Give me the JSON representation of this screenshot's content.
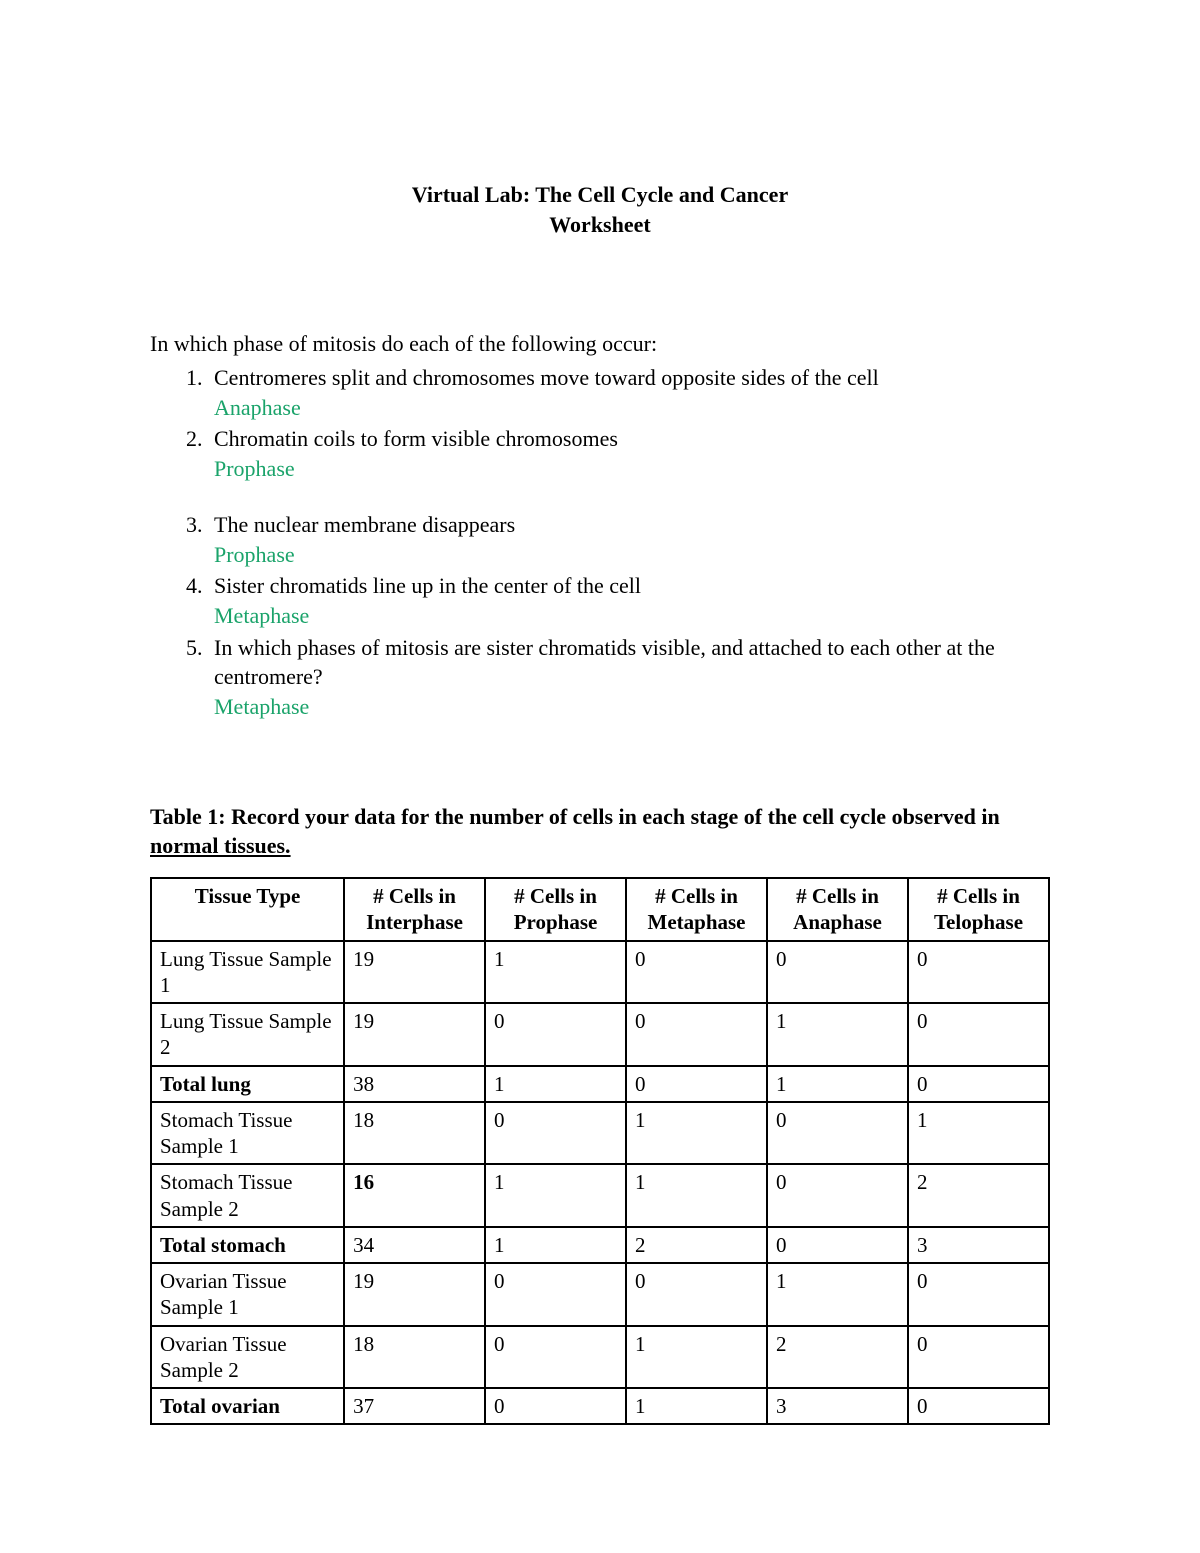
{
  "colors": {
    "text": "#000000",
    "answer": "#1aa36a",
    "background": "#ffffff",
    "table_border": "#000000"
  },
  "title": {
    "line1": "Virtual Lab:  The Cell Cycle and Cancer",
    "line2": "Worksheet"
  },
  "intro": "In which phase of mitosis do each of the following occur:",
  "questions": [
    {
      "q": "Centromeres split and chromosomes move toward opposite sides of the cell",
      "a": "Anaphase",
      "gap_after": false
    },
    {
      "q": "Chromatin coils to form visible chromosomes",
      "a": "Prophase",
      "gap_after": true
    },
    {
      "q": "The nuclear membrane disappears",
      "a": "Prophase",
      "gap_after": false
    },
    {
      "q": "Sister chromatids line up in the center of the cell",
      "a": "Metaphase",
      "gap_after": false
    },
    {
      "q": "In which phases of mitosis are sister chromatids visible, and attached to each other at the centromere?",
      "a": "Metaphase",
      "gap_after": false
    }
  ],
  "table": {
    "caption_prefix": "Table 1:  Record your data for the number of cells in each stage of the cell cycle observed in ",
    "caption_underlined": "normal tissues.",
    "columns": [
      "Tissue Type",
      "# Cells in Interphase",
      "# Cells in Prophase",
      "# Cells in Metaphase",
      "# Cells in Anaphase",
      "# Cells in Telophase"
    ],
    "rows": [
      {
        "label": "Lung Tissue Sample 1",
        "bold_label": false,
        "indent": false,
        "cells": [
          "19",
          "1",
          "0",
          "0",
          "0"
        ],
        "bold_cells": [
          false,
          false,
          false,
          false,
          false
        ]
      },
      {
        "label": "Lung Tissue Sample 2",
        "bold_label": false,
        "indent": false,
        "cells": [
          "19",
          "0",
          "0",
          "1",
          "0"
        ],
        "bold_cells": [
          false,
          false,
          false,
          false,
          false
        ]
      },
      {
        "label": "Total lung",
        "bold_label": true,
        "indent": true,
        "cells": [
          "38",
          "1",
          "0",
          "1",
          "0"
        ],
        "bold_cells": [
          false,
          false,
          false,
          false,
          false
        ]
      },
      {
        "label": "Stomach Tissue Sample 1",
        "bold_label": false,
        "indent": false,
        "cells": [
          "18",
          "0",
          "1",
          "0",
          "1"
        ],
        "bold_cells": [
          false,
          false,
          false,
          false,
          false
        ]
      },
      {
        "label": "Stomach Tissue Sample 2",
        "bold_label": false,
        "indent": false,
        "cells": [
          "16",
          "1",
          "1",
          "0",
          "2"
        ],
        "bold_cells": [
          true,
          false,
          false,
          false,
          false
        ]
      },
      {
        "label": "Total stomach",
        "bold_label": true,
        "indent": true,
        "cells": [
          "34",
          "1",
          "2",
          "0",
          "3"
        ],
        "bold_cells": [
          false,
          false,
          false,
          false,
          false
        ]
      },
      {
        "label": "Ovarian Tissue Sample 1",
        "bold_label": false,
        "indent": false,
        "cells": [
          "19",
          "0",
          "0",
          "1",
          "0"
        ],
        "bold_cells": [
          false,
          false,
          false,
          false,
          false
        ]
      },
      {
        "label": "Ovarian Tissue Sample 2",
        "bold_label": false,
        "indent": false,
        "cells": [
          "18",
          "0",
          "1",
          "2",
          "0"
        ],
        "bold_cells": [
          false,
          false,
          false,
          false,
          false
        ]
      },
      {
        "label": "Total ovarian",
        "bold_label": true,
        "indent": true,
        "cells": [
          "37",
          "0",
          "1",
          "3",
          "0"
        ],
        "bold_cells": [
          false,
          false,
          false,
          false,
          false
        ]
      }
    ]
  }
}
